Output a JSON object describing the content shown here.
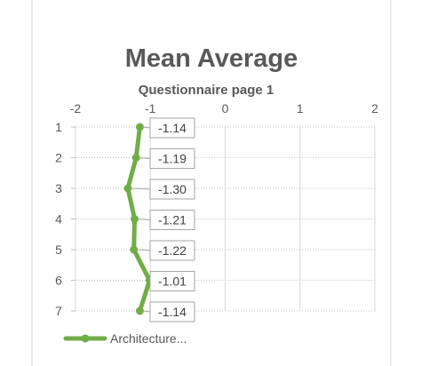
{
  "chart_data": {
    "type": "line",
    "title": "Mean Average",
    "subtitle": "Questionnaire page 1",
    "xlim": [
      -2,
      2
    ],
    "x_ticks": [
      -2,
      -1,
      0,
      1,
      2
    ],
    "x_tick_labels": [
      "-2",
      "-1",
      "0",
      "1",
      "2"
    ],
    "x_axis_position": "top",
    "ylim": [
      1,
      7
    ],
    "y_ticks": [
      1,
      2,
      3,
      4,
      5,
      6,
      7
    ],
    "y_tick_labels": [
      "1",
      "2",
      "3",
      "4",
      "5",
      "6",
      "7"
    ],
    "grid": true,
    "legend": "bottom-left",
    "series": [
      {
        "name": "Architecture...",
        "color": "#70ad47",
        "values": [
          -1.14,
          -1.19,
          -1.3,
          -1.21,
          -1.22,
          -1.01,
          -1.14
        ],
        "data_labels": [
          "-1.14",
          "-1.19",
          "-1.30",
          "-1.21",
          "-1.22",
          "-1.01",
          "-1.14"
        ]
      }
    ]
  }
}
